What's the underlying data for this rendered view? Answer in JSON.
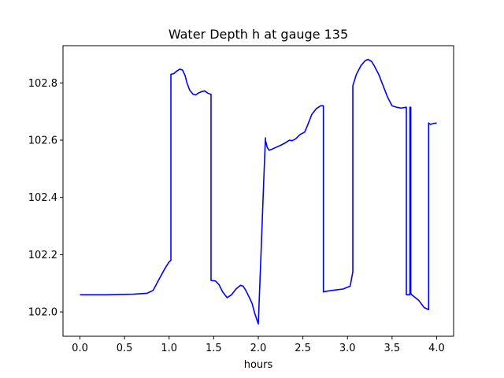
{
  "chart_data": {
    "type": "line",
    "title": "Water Depth h at gauge 135",
    "xlabel": "hours",
    "ylabel": "",
    "xlim": [
      -0.19,
      4.19
    ],
    "ylim": [
      101.915,
      102.93
    ],
    "xticks": [
      0.0,
      0.5,
      1.0,
      1.5,
      2.0,
      2.5,
      3.0,
      3.5,
      4.0
    ],
    "xtick_labels": [
      "0.0",
      "0.5",
      "1.0",
      "1.5",
      "2.0",
      "2.5",
      "3.0",
      "3.5",
      "4.0"
    ],
    "yticks": [
      102.0,
      102.2,
      102.4,
      102.6,
      102.8
    ],
    "ytick_labels": [
      "102.0",
      "102.2",
      "102.4",
      "102.6",
      "102.8"
    ],
    "grid": false,
    "legend": "none",
    "series": [
      {
        "color": "#0000ff",
        "x": [
          0.0,
          0.3,
          0.6,
          0.75,
          0.82,
          0.88,
          0.95,
          1.0,
          1.02,
          1.02,
          1.05,
          1.08,
          1.12,
          1.15,
          1.18,
          1.2,
          1.23,
          1.27,
          1.3,
          1.33,
          1.37,
          1.4,
          1.43,
          1.45,
          1.47,
          1.47,
          1.52,
          1.56,
          1.6,
          1.65,
          1.7,
          1.75,
          1.8,
          1.83,
          1.86,
          1.9,
          1.93,
          1.96,
          2.0,
          2.03,
          2.06,
          2.08,
          2.08,
          2.1,
          2.12,
          2.15,
          2.2,
          2.25,
          2.3,
          2.35,
          2.38,
          2.42,
          2.47,
          2.52,
          2.55,
          2.6,
          2.65,
          2.7,
          2.73,
          2.73,
          2.78,
          2.85,
          2.95,
          3.03,
          3.06,
          3.06,
          3.1,
          3.15,
          3.2,
          3.23,
          3.27,
          3.3,
          3.35,
          3.4,
          3.45,
          3.5,
          3.55,
          3.6,
          3.66,
          3.66,
          3.7,
          3.7,
          3.71,
          3.71,
          3.72,
          3.76,
          3.8,
          3.86,
          3.91,
          3.91,
          3.93,
          3.96,
          4.0
        ],
        "y": [
          102.06,
          102.06,
          102.062,
          102.065,
          102.075,
          102.11,
          102.15,
          102.175,
          102.18,
          102.83,
          102.832,
          102.84,
          102.848,
          102.845,
          102.825,
          102.8,
          102.775,
          102.76,
          102.758,
          102.765,
          102.77,
          102.772,
          102.765,
          102.762,
          102.76,
          102.11,
          102.108,
          102.095,
          102.07,
          102.05,
          102.06,
          102.08,
          102.093,
          102.09,
          102.075,
          102.05,
          102.03,
          101.995,
          101.958,
          102.2,
          102.45,
          102.608,
          102.6,
          102.575,
          102.565,
          102.568,
          102.575,
          102.582,
          102.59,
          102.6,
          102.598,
          102.605,
          102.62,
          102.628,
          102.65,
          102.69,
          102.71,
          102.72,
          102.72,
          102.07,
          102.073,
          102.076,
          102.08,
          102.09,
          102.14,
          102.79,
          102.83,
          102.86,
          102.878,
          102.882,
          102.875,
          102.86,
          102.83,
          102.79,
          102.75,
          102.72,
          102.715,
          102.712,
          102.715,
          102.06,
          102.06,
          102.715,
          102.715,
          102.065,
          102.06,
          102.05,
          102.04,
          102.015,
          102.008,
          102.66,
          102.655,
          102.658,
          102.66
        ]
      }
    ]
  }
}
